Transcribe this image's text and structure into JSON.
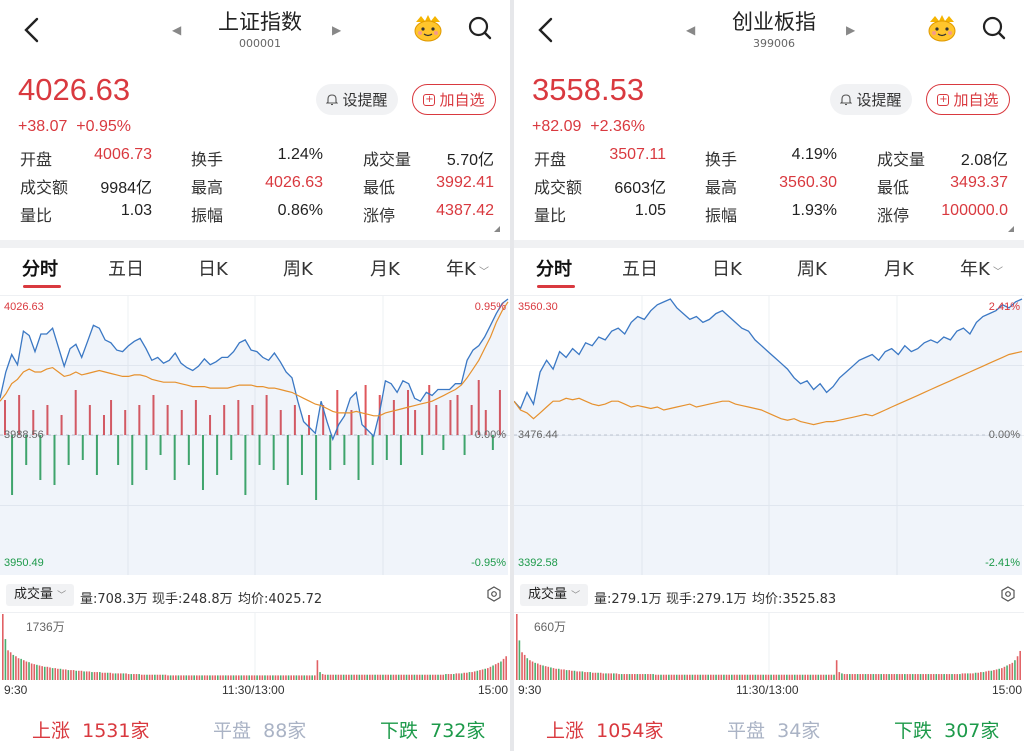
{
  "colors": {
    "up": "#d9393f",
    "down": "#1d9a4a",
    "flat": "#aab3c5",
    "line_price": "#3b78c4",
    "line_avg": "#e6912e"
  },
  "panels": [
    {
      "title": "上证指数",
      "code": "000001",
      "price": "4026.63",
      "change": "+38.07",
      "change_pct": "+0.95%",
      "alert_label": "设提醒",
      "watch_label": "加自选",
      "stats": [
        [
          {
            "label": "开盘",
            "value": "4006.73",
            "color": "red"
          },
          {
            "label": "换手",
            "value": "1.24%",
            "color": "blk"
          },
          {
            "label": "成交量",
            "value": "5.70亿",
            "color": "blk"
          }
        ],
        [
          {
            "label": "成交额",
            "value": "9984亿",
            "color": "blk"
          },
          {
            "label": "最高",
            "value": "4026.63",
            "color": "red"
          },
          {
            "label": "最低",
            "value": "3992.41",
            "color": "red"
          }
        ],
        [
          {
            "label": "量比",
            "value": "1.03",
            "color": "blk"
          },
          {
            "label": "振幅",
            "value": "0.86%",
            "color": "blk"
          },
          {
            "label": "涨停",
            "value": "4387.42",
            "color": "red"
          }
        ]
      ],
      "tabs": [
        "分时",
        "五日",
        "日K",
        "周K",
        "月K",
        "年K"
      ],
      "axis": {
        "top_left": "4026.63",
        "mid_left": "3988.56",
        "bottom_left": "3950.49",
        "top_right": "0.95%",
        "mid_right": "0.00%",
        "bottom_right": "-0.95%"
      },
      "volume": {
        "label": "成交量",
        "vol": "量:708.3万",
        "now": "现手:248.8万",
        "avg": "均价:4025.72",
        "max": "1736万"
      },
      "times": [
        "9:30",
        "11:30/13:00",
        "15:00"
      ],
      "breadth": {
        "up_label": "上涨",
        "up": "1531家",
        "flat_label": "平盘",
        "flat": "88家",
        "down_label": "下跌",
        "down": "732家"
      },
      "series": {
        "price": [
          0.32,
          0.5,
          0.62,
          0.55,
          0.78,
          0.75,
          0.64,
          0.76,
          0.76,
          0.8,
          0.67,
          0.54,
          0.66,
          0.69,
          0.6,
          0.71,
          0.82,
          0.8,
          0.72,
          0.7,
          0.65,
          0.64,
          0.68,
          0.71,
          0.73,
          0.66,
          0.58,
          0.6,
          0.56,
          0.58,
          0.63,
          0.56,
          0.53,
          0.51,
          0.54,
          0.59,
          0.55,
          0.57,
          0.6,
          0.6,
          0.64,
          0.7,
          0.72,
          0.65,
          0.64,
          0.6,
          0.58,
          0.63,
          0.57,
          0.5,
          0.46,
          0.3,
          0.16,
          0.12,
          0.08,
          0.3,
          0.16,
          0.04,
          0.14,
          0.2,
          0.32,
          0.36,
          0.14,
          0.1,
          0.06,
          0.22,
          0.44,
          0.42,
          0.36,
          0.44,
          0.42,
          0.32,
          0.3,
          0.36,
          0.34,
          0.38,
          0.38,
          0.38,
          0.42,
          0.42,
          0.58,
          0.65,
          0.68,
          0.74,
          0.82,
          0.9,
          0.97,
          1.0
        ],
        "avg": [
          0.3,
          0.35,
          0.42,
          0.45,
          0.5,
          0.52,
          0.5,
          0.5,
          0.52,
          0.53,
          0.5,
          0.47,
          0.48,
          0.5,
          0.48,
          0.49,
          0.5,
          0.51,
          0.5,
          0.49,
          0.48,
          0.47,
          0.47,
          0.48,
          0.48,
          0.47,
          0.45,
          0.44,
          0.43,
          0.43,
          0.43,
          0.42,
          0.41,
          0.4,
          0.4,
          0.4,
          0.39,
          0.39,
          0.39,
          0.39,
          0.4,
          0.41,
          0.41,
          0.41,
          0.4,
          0.4,
          0.39,
          0.39,
          0.38,
          0.37,
          0.36,
          0.34,
          0.32,
          0.3,
          0.28,
          0.27,
          0.25,
          0.23,
          0.22,
          0.22,
          0.22,
          0.23,
          0.22,
          0.21,
          0.2,
          0.2,
          0.22,
          0.23,
          0.24,
          0.25,
          0.26,
          0.27,
          0.28,
          0.29,
          0.3,
          0.32,
          0.34,
          0.36,
          0.38,
          0.41,
          0.46,
          0.52,
          0.58,
          0.66,
          0.74,
          0.84,
          0.92,
          0.98
        ],
        "vol": [
          1.0,
          0.62,
          0.45,
          0.42,
          0.38,
          0.36,
          0.33,
          0.32,
          0.3,
          0.28,
          0.27,
          0.25,
          0.24,
          0.23,
          0.22,
          0.21,
          0.2,
          0.2,
          0.19,
          0.18,
          0.18,
          0.17,
          0.17,
          0.16,
          0.16,
          0.15,
          0.15,
          0.15,
          0.14,
          0.14,
          0.14,
          0.13,
          0.13,
          0.13,
          0.12,
          0.12,
          0.12,
          0.12,
          0.11,
          0.11,
          0.11,
          0.11,
          0.1,
          0.1,
          0.1,
          0.1,
          0.1,
          0.1,
          0.09,
          0.09,
          0.09,
          0.09,
          0.09,
          0.08,
          0.08,
          0.08,
          0.08,
          0.08,
          0.08,
          0.08,
          0.08,
          0.08,
          0.08,
          0.07,
          0.07,
          0.07,
          0.07,
          0.07,
          0.07,
          0.07,
          0.07,
          0.07,
          0.07,
          0.07,
          0.07,
          0.07,
          0.07,
          0.07,
          0.07,
          0.07,
          0.07,
          0.07,
          0.07,
          0.07,
          0.07,
          0.07,
          0.07,
          0.07,
          0.07,
          0.07,
          0.07,
          0.07,
          0.07,
          0.07,
          0.07,
          0.07,
          0.07,
          0.07,
          0.07,
          0.07,
          0.07,
          0.07,
          0.07,
          0.07,
          0.07,
          0.07,
          0.07,
          0.07,
          0.07,
          0.07,
          0.07,
          0.07,
          0.07,
          0.07,
          0.07,
          0.07,
          0.07,
          0.07,
          0.07,
          0.07,
          0.3,
          0.12,
          0.09,
          0.08,
          0.08,
          0.08,
          0.08,
          0.08,
          0.08,
          0.08,
          0.08,
          0.08,
          0.08,
          0.08,
          0.08,
          0.08,
          0.08,
          0.08,
          0.08,
          0.08,
          0.08,
          0.08,
          0.08,
          0.08,
          0.08,
          0.08,
          0.08,
          0.08,
          0.08,
          0.08,
          0.08,
          0.08,
          0.08,
          0.08,
          0.08,
          0.08,
          0.08,
          0.08,
          0.08,
          0.08,
          0.08,
          0.08,
          0.08,
          0.08,
          0.08,
          0.08,
          0.08,
          0.08,
          0.08,
          0.09,
          0.09,
          0.09,
          0.09,
          0.1,
          0.1,
          0.1,
          0.11,
          0.11,
          0.12,
          0.12,
          0.13,
          0.14,
          0.15,
          0.16,
          0.17,
          0.18,
          0.2,
          0.22,
          0.24,
          0.26,
          0.28,
          0.32,
          0.36
        ],
        "breadth_bars": [
          0.35,
          -0.6,
          0.4,
          -0.3,
          0.25,
          -0.45,
          0.3,
          -0.5,
          0.2,
          -0.3,
          0.45,
          -0.25,
          0.3,
          -0.4,
          0.2,
          0.35,
          -0.3,
          0.25,
          -0.5,
          0.3,
          -0.35,
          0.4,
          -0.2,
          0.3,
          -0.45,
          0.25,
          -0.3,
          0.35,
          -0.55,
          0.2,
          -0.4,
          0.3,
          -0.25,
          0.35,
          -0.6,
          0.3,
          -0.3,
          0.4,
          -0.35,
          0.25,
          -0.5,
          0.3,
          -0.4,
          0.2,
          -0.65,
          0.3,
          -0.35,
          0.45,
          -0.3,
          0.25,
          -0.45,
          0.5,
          -0.3,
          0.4,
          -0.25,
          0.35,
          -0.3,
          0.45,
          0.25,
          -0.2,
          0.5,
          0.3,
          -0.15,
          0.35,
          0.4,
          -0.2,
          0.3,
          0.55,
          0.25,
          -0.15,
          0.45
        ]
      }
    },
    {
      "title": "创业板指",
      "code": "399006",
      "price": "3558.53",
      "change": "+82.09",
      "change_pct": "+2.36%",
      "alert_label": "设提醒",
      "watch_label": "加自选",
      "stats": [
        [
          {
            "label": "开盘",
            "value": "3507.11",
            "color": "red"
          },
          {
            "label": "换手",
            "value": "4.19%",
            "color": "blk"
          },
          {
            "label": "成交量",
            "value": "2.08亿",
            "color": "blk"
          }
        ],
        [
          {
            "label": "成交额",
            "value": "6603亿",
            "color": "blk"
          },
          {
            "label": "最高",
            "value": "3560.30",
            "color": "red"
          },
          {
            "label": "最低",
            "value": "3493.37",
            "color": "red"
          }
        ],
        [
          {
            "label": "量比",
            "value": "1.05",
            "color": "blk"
          },
          {
            "label": "振幅",
            "value": "1.93%",
            "color": "blk"
          },
          {
            "label": "涨停",
            "value": "100000.0",
            "color": "red"
          }
        ]
      ],
      "tabs": [
        "分时",
        "五日",
        "日K",
        "周K",
        "月K",
        "年K"
      ],
      "axis": {
        "top_left": "3560.30",
        "mid_left": "3476.44",
        "bottom_left": "3392.58",
        "top_right": "2.41%",
        "mid_right": "0.00%",
        "bottom_right": "-2.41%"
      },
      "volume": {
        "label": "成交量",
        "vol": "量:279.1万",
        "now": "现手:279.1万",
        "avg": "均价:3525.83",
        "max": "660万"
      },
      "times": [
        "9:30",
        "11:30/13:00",
        "15:00"
      ],
      "breadth": {
        "up_label": "上涨",
        "up": "1054家",
        "flat_label": "平盘",
        "flat": "34家",
        "down_label": "下跌",
        "down": "307家"
      },
      "series": {
        "price": [
          0.3,
          0.25,
          0.36,
          0.28,
          0.5,
          0.58,
          0.52,
          0.64,
          0.6,
          0.66,
          0.62,
          0.7,
          0.68,
          0.74,
          0.72,
          0.78,
          0.8,
          0.76,
          0.84,
          0.88,
          0.86,
          0.92,
          0.96,
          0.98,
          1.0,
          0.94,
          0.9,
          0.86,
          0.88,
          0.84,
          0.86,
          0.9,
          0.92,
          0.88,
          0.84,
          0.8,
          0.78,
          0.72,
          0.68,
          0.64,
          0.6,
          0.56,
          0.52,
          0.46,
          0.42,
          0.44,
          0.38,
          0.42,
          0.36,
          0.4,
          0.46,
          0.5,
          0.54,
          0.58,
          0.6,
          0.62,
          0.58,
          0.64,
          0.66,
          0.62,
          0.68,
          0.64,
          0.66,
          0.7,
          0.72,
          0.7,
          0.74,
          0.72,
          0.78,
          0.8,
          0.76,
          0.84,
          0.88,
          0.9,
          0.92,
          0.96,
          0.94,
          0.98,
          1.0
        ],
        "avg": [
          0.3,
          0.24,
          0.22,
          0.18,
          0.22,
          0.26,
          0.3,
          0.3,
          0.32,
          0.31,
          0.32,
          0.3,
          0.28,
          0.27,
          0.28,
          0.3,
          0.3,
          0.28,
          0.26,
          0.27,
          0.26,
          0.25,
          0.26,
          0.24,
          0.25,
          0.26,
          0.27,
          0.28,
          0.26,
          0.27,
          0.28,
          0.29,
          0.3,
          0.3,
          0.28,
          0.27,
          0.26,
          0.25,
          0.24,
          0.22,
          0.2,
          0.18,
          0.17,
          0.18,
          0.16,
          0.15,
          0.14,
          0.15,
          0.16,
          0.16,
          0.17,
          0.18,
          0.19,
          0.2,
          0.21,
          0.2,
          0.22,
          0.24,
          0.26,
          0.28,
          0.3,
          0.32,
          0.34,
          0.36,
          0.38,
          0.4,
          0.42,
          0.44,
          0.46,
          0.48,
          0.5,
          0.52,
          0.54,
          0.56,
          0.58,
          0.6,
          0.62,
          0.63,
          0.64
        ],
        "vol": [
          1.0,
          0.6,
          0.42,
          0.38,
          0.33,
          0.3,
          0.28,
          0.26,
          0.25,
          0.23,
          0.22,
          0.21,
          0.2,
          0.19,
          0.18,
          0.17,
          0.17,
          0.16,
          0.16,
          0.15,
          0.15,
          0.14,
          0.14,
          0.13,
          0.13,
          0.13,
          0.12,
          0.12,
          0.12,
          0.11,
          0.11,
          0.11,
          0.11,
          0.1,
          0.1,
          0.1,
          0.1,
          0.1,
          0.1,
          0.09,
          0.09,
          0.09,
          0.09,
          0.09,
          0.09,
          0.09,
          0.09,
          0.09,
          0.09,
          0.09,
          0.09,
          0.09,
          0.09,
          0.08,
          0.08,
          0.08,
          0.08,
          0.08,
          0.08,
          0.08,
          0.08,
          0.08,
          0.08,
          0.08,
          0.08,
          0.08,
          0.08,
          0.08,
          0.08,
          0.08,
          0.08,
          0.08,
          0.08,
          0.08,
          0.08,
          0.08,
          0.08,
          0.08,
          0.08,
          0.08,
          0.08,
          0.08,
          0.08,
          0.08,
          0.08,
          0.08,
          0.08,
          0.08,
          0.08,
          0.08,
          0.08,
          0.08,
          0.08,
          0.08,
          0.08,
          0.08,
          0.08,
          0.08,
          0.08,
          0.08,
          0.08,
          0.08,
          0.08,
          0.08,
          0.08,
          0.08,
          0.08,
          0.08,
          0.08,
          0.08,
          0.08,
          0.08,
          0.08,
          0.08,
          0.08,
          0.08,
          0.08,
          0.08,
          0.08,
          0.08,
          0.08,
          0.08,
          0.3,
          0.12,
          0.1,
          0.09,
          0.09,
          0.09,
          0.09,
          0.09,
          0.09,
          0.09,
          0.09,
          0.09,
          0.09,
          0.09,
          0.09,
          0.09,
          0.09,
          0.09,
          0.09,
          0.09,
          0.09,
          0.09,
          0.09,
          0.09,
          0.09,
          0.09,
          0.09,
          0.09,
          0.09,
          0.09,
          0.09,
          0.09,
          0.09,
          0.09,
          0.09,
          0.09,
          0.09,
          0.09,
          0.09,
          0.09,
          0.09,
          0.09,
          0.09,
          0.09,
          0.09,
          0.09,
          0.09,
          0.09,
          0.1,
          0.1,
          0.1,
          0.1,
          0.1,
          0.11,
          0.11,
          0.12,
          0.12,
          0.13,
          0.14,
          0.14,
          0.15,
          0.16,
          0.17,
          0.18,
          0.2,
          0.22,
          0.24,
          0.26,
          0.3,
          0.36,
          0.44
        ],
        "breadth_bars": []
      }
    }
  ]
}
